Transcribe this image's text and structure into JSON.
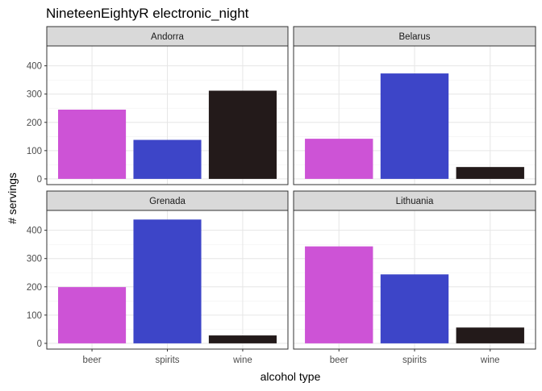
{
  "chart_data": {
    "type": "bar",
    "title": "NineteenEightyR electronic_night",
    "xlabel": "alcohol type",
    "ylabel": "# servings",
    "categories": [
      "beer",
      "spirits",
      "wine"
    ],
    "colors": {
      "beer": "#cd53d6",
      "spirits": "#3d45c8",
      "wine": "#231a1a"
    },
    "grid": true,
    "legend": "none",
    "facets": [
      {
        "name": "Andorra",
        "values": [
          245,
          138,
          312
        ],
        "ylim": [
          0,
          450
        ],
        "yticks": [
          0,
          100,
          200,
          300,
          400
        ]
      },
      {
        "name": "Belarus",
        "values": [
          142,
          373,
          42
        ],
        "ylim": [
          0,
          450
        ],
        "yticks": [
          0,
          100,
          200,
          300,
          400
        ]
      },
      {
        "name": "Grenada",
        "values": [
          199,
          438,
          28
        ],
        "ylim": [
          0,
          450
        ],
        "yticks": [
          0,
          100,
          200,
          300,
          400
        ]
      },
      {
        "name": "Lithuania",
        "values": [
          343,
          244,
          56
        ],
        "ylim": [
          0,
          450
        ],
        "yticks": [
          0,
          100,
          200,
          300,
          400
        ]
      }
    ]
  }
}
